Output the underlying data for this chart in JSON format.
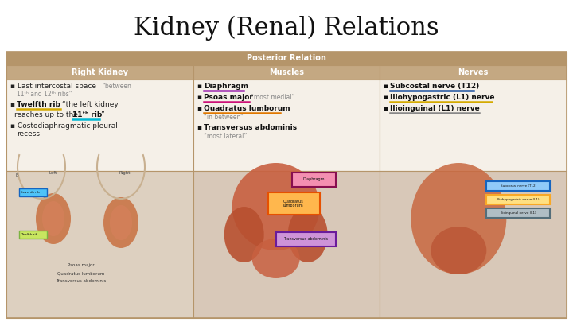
{
  "title": "Kidney (Renal) Relations",
  "title_fontsize": 22,
  "title_font": "serif",
  "background_color": "#ffffff",
  "table_border_color": "#b5956a",
  "header_row1_bg": "#b5956a",
  "header_row1_text": "Posterior Relation",
  "header_row1_color": "#ffffff",
  "header_row2_bg": "#c4a882",
  "header_row2_color": "#ffffff",
  "col_headers": [
    "Right Kidney",
    "Muscles",
    "Nerves"
  ],
  "cell_bg": "#f5f0e8",
  "img_bg": "#e8ddd0",
  "underline_colors": {
    "yellow": "#d4aa00",
    "cyan": "#00b8d4",
    "purple": "#9c27b0",
    "magenta": "#cc1177",
    "orange": "#e07800",
    "blue": "#1a4fa0",
    "gray": "#888888"
  }
}
